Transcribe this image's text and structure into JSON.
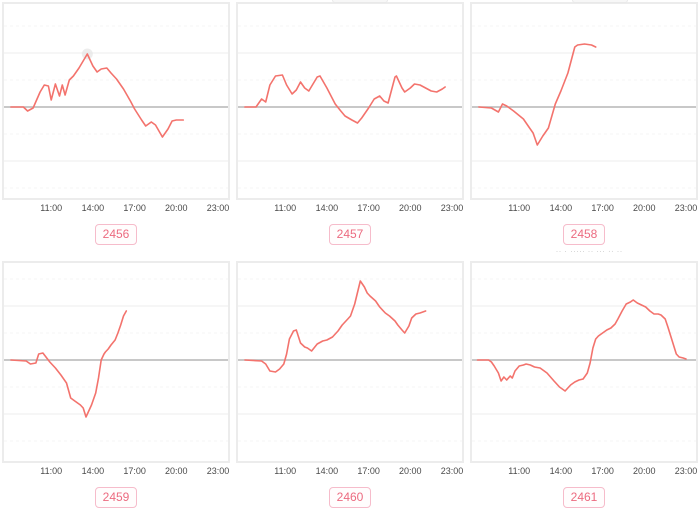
{
  "page": {
    "background": "#ffffff"
  },
  "colors": {
    "line": "#f3736d",
    "zero_line": "#b5b5b5",
    "grid_major": "#ececec",
    "grid_minor": "#f4f4f4",
    "card_border": "#ececec",
    "tick_text": "#4a4a4a",
    "badge_border": "#f6bccb",
    "badge_text": "#ec6b80",
    "marker_fill": "#e6e6e6"
  },
  "x_ticks": {
    "labels": [
      "11:00",
      "14:00",
      "17:00",
      "20:00",
      "23:00"
    ]
  },
  "fine_print": "·· · ····· ·· ··· ·· ··",
  "chart_data": [
    {
      "type": "line",
      "badge": "2456",
      "x_range": [
        "08:00",
        "24:00"
      ],
      "y_axis": "relative (no labels shown), zero baseline drawn",
      "marker": {
        "t": 13.6,
        "v": 53
      },
      "series": [
        [
          8.1,
          0
        ],
        [
          9.0,
          0
        ],
        [
          9.3,
          -4
        ],
        [
          9.7,
          -1
        ],
        [
          10.2,
          15
        ],
        [
          10.5,
          22
        ],
        [
          10.8,
          21
        ],
        [
          11.0,
          7
        ],
        [
          11.3,
          23
        ],
        [
          11.6,
          11
        ],
        [
          11.8,
          22
        ],
        [
          12.0,
          12
        ],
        [
          12.3,
          27
        ],
        [
          12.6,
          31
        ],
        [
          13.0,
          39
        ],
        [
          13.6,
          53
        ],
        [
          14.0,
          41
        ],
        [
          14.3,
          35
        ],
        [
          14.6,
          38
        ],
        [
          15.0,
          39
        ],
        [
          15.3,
          34
        ],
        [
          15.7,
          28
        ],
        [
          16.2,
          18
        ],
        [
          16.7,
          6
        ],
        [
          17.0,
          -2
        ],
        [
          17.5,
          -13
        ],
        [
          17.8,
          -19
        ],
        [
          18.2,
          -15
        ],
        [
          18.5,
          -18
        ],
        [
          19.0,
          -30
        ],
        [
          19.4,
          -22
        ],
        [
          19.7,
          -14
        ],
        [
          20.0,
          -13
        ],
        [
          20.5,
          -13
        ]
      ]
    },
    {
      "type": "line",
      "badge": "2457",
      "x_range": [
        "08:00",
        "24:00"
      ],
      "series": [
        [
          8.1,
          0
        ],
        [
          8.9,
          0
        ],
        [
          9.3,
          8
        ],
        [
          9.6,
          5
        ],
        [
          9.9,
          22
        ],
        [
          10.3,
          31
        ],
        [
          10.8,
          32
        ],
        [
          11.1,
          22
        ],
        [
          11.5,
          13
        ],
        [
          11.8,
          17
        ],
        [
          12.1,
          25
        ],
        [
          12.4,
          19
        ],
        [
          12.7,
          16
        ],
        [
          13.3,
          30
        ],
        [
          13.5,
          31
        ],
        [
          14.0,
          19
        ],
        [
          14.6,
          3
        ],
        [
          15.0,
          -4
        ],
        [
          15.3,
          -9
        ],
        [
          15.8,
          -13
        ],
        [
          16.2,
          -16
        ],
        [
          16.5,
          -11
        ],
        [
          17.0,
          -1
        ],
        [
          17.4,
          8
        ],
        [
          17.8,
          11
        ],
        [
          18.1,
          6
        ],
        [
          18.4,
          4
        ],
        [
          18.9,
          30
        ],
        [
          19.0,
          31
        ],
        [
          19.4,
          19
        ],
        [
          19.6,
          15
        ],
        [
          20.0,
          19
        ],
        [
          20.3,
          23
        ],
        [
          20.7,
          22
        ],
        [
          21.1,
          19
        ],
        [
          21.5,
          16
        ],
        [
          21.9,
          15
        ],
        [
          22.3,
          18
        ],
        [
          22.5,
          20
        ]
      ]
    },
    {
      "type": "line",
      "badge": "2458",
      "x_range": [
        "08:00",
        "24:00"
      ],
      "series": [
        [
          8.1,
          0
        ],
        [
          9.0,
          -1
        ],
        [
          9.5,
          -5
        ],
        [
          9.8,
          3
        ],
        [
          10.1,
          1
        ],
        [
          10.6,
          -4
        ],
        [
          11.3,
          -12
        ],
        [
          11.7,
          -20
        ],
        [
          12.0,
          -26
        ],
        [
          12.3,
          -38
        ],
        [
          12.7,
          -29
        ],
        [
          13.1,
          -21
        ],
        [
          13.6,
          3
        ],
        [
          14.0,
          16
        ],
        [
          14.5,
          34
        ],
        [
          15.0,
          60
        ],
        [
          15.2,
          62
        ],
        [
          15.7,
          63
        ],
        [
          16.2,
          62
        ],
        [
          16.5,
          60
        ]
      ]
    },
    {
      "type": "line",
      "badge": "2459",
      "x_range": [
        "08:00",
        "24:00"
      ],
      "series": [
        [
          8.1,
          0
        ],
        [
          9.2,
          -1
        ],
        [
          9.5,
          -4
        ],
        [
          9.9,
          -3
        ],
        [
          10.1,
          6
        ],
        [
          10.4,
          7
        ],
        [
          10.9,
          -2
        ],
        [
          11.3,
          -8
        ],
        [
          11.7,
          -15
        ],
        [
          12.1,
          -23
        ],
        [
          12.4,
          -38
        ],
        [
          12.7,
          -41
        ],
        [
          13.1,
          -45
        ],
        [
          13.3,
          -48
        ],
        [
          13.5,
          -57
        ],
        [
          13.9,
          -45
        ],
        [
          14.2,
          -33
        ],
        [
          14.4,
          -18
        ],
        [
          14.6,
          0
        ],
        [
          14.8,
          6
        ],
        [
          14.9,
          8
        ],
        [
          15.1,
          11
        ],
        [
          15.3,
          15
        ],
        [
          15.6,
          20
        ],
        [
          15.8,
          27
        ],
        [
          16.0,
          35
        ],
        [
          16.2,
          44
        ],
        [
          16.4,
          49
        ]
      ]
    },
    {
      "type": "line",
      "badge": "2460",
      "x_range": [
        "08:00",
        "24:00"
      ],
      "series": [
        [
          8.1,
          0
        ],
        [
          9.3,
          -1
        ],
        [
          9.6,
          -4
        ],
        [
          9.9,
          -11
        ],
        [
          10.3,
          -12
        ],
        [
          10.6,
          -9
        ],
        [
          10.9,
          -4
        ],
        [
          11.1,
          6
        ],
        [
          11.3,
          21
        ],
        [
          11.6,
          29
        ],
        [
          11.8,
          30
        ],
        [
          12.1,
          17
        ],
        [
          12.4,
          13
        ],
        [
          12.6,
          12
        ],
        [
          12.9,
          9
        ],
        [
          13.3,
          16
        ],
        [
          13.7,
          19
        ],
        [
          14.0,
          20
        ],
        [
          14.4,
          23
        ],
        [
          14.8,
          29
        ],
        [
          15.1,
          35
        ],
        [
          15.5,
          41
        ],
        [
          15.7,
          44
        ],
        [
          16.0,
          56
        ],
        [
          16.4,
          79
        ],
        [
          16.7,
          73
        ],
        [
          16.9,
          67
        ],
        [
          17.1,
          64
        ],
        [
          17.5,
          59
        ],
        [
          17.8,
          53
        ],
        [
          18.2,
          47
        ],
        [
          18.5,
          44
        ],
        [
          18.9,
          39
        ],
        [
          19.1,
          35
        ],
        [
          19.4,
          30
        ],
        [
          19.6,
          27
        ],
        [
          19.9,
          34
        ],
        [
          20.1,
          42
        ],
        [
          20.4,
          46
        ],
        [
          20.7,
          47
        ],
        [
          20.9,
          48
        ],
        [
          21.1,
          49
        ]
      ]
    },
    {
      "type": "line",
      "badge": "2461",
      "x_range": [
        "08:00",
        "24:00"
      ],
      "series": [
        [
          8.0,
          0
        ],
        [
          8.8,
          0
        ],
        [
          9.0,
          -2
        ],
        [
          9.2,
          -6
        ],
        [
          9.5,
          -13
        ],
        [
          9.7,
          -21
        ],
        [
          9.9,
          -17
        ],
        [
          10.1,
          -20
        ],
        [
          10.35,
          -16
        ],
        [
          10.5,
          -18
        ],
        [
          10.7,
          -11
        ],
        [
          11.0,
          -6
        ],
        [
          11.3,
          -5
        ],
        [
          11.5,
          -4
        ],
        [
          11.8,
          -5
        ],
        [
          12.1,
          -7
        ],
        [
          12.5,
          -8
        ],
        [
          13.0,
          -13
        ],
        [
          13.5,
          -21
        ],
        [
          13.9,
          -27
        ],
        [
          14.3,
          -31
        ],
        [
          14.7,
          -25
        ],
        [
          15.0,
          -22
        ],
        [
          15.3,
          -20
        ],
        [
          15.6,
          -19
        ],
        [
          15.9,
          -13
        ],
        [
          16.1,
          -3
        ],
        [
          16.3,
          12
        ],
        [
          16.5,
          21
        ],
        [
          16.7,
          24
        ],
        [
          17.0,
          27
        ],
        [
          17.3,
          30
        ],
        [
          17.6,
          32
        ],
        [
          17.9,
          36
        ],
        [
          18.1,
          41
        ],
        [
          18.4,
          49
        ],
        [
          18.7,
          56
        ],
        [
          19.0,
          58
        ],
        [
          19.2,
          60
        ],
        [
          19.5,
          57
        ],
        [
          19.8,
          55
        ],
        [
          20.1,
          53
        ],
        [
          20.4,
          49
        ],
        [
          20.7,
          46
        ],
        [
          21.0,
          46
        ],
        [
          21.2,
          45
        ],
        [
          21.5,
          41
        ],
        [
          21.7,
          33
        ],
        [
          21.9,
          24
        ],
        [
          22.1,
          15
        ],
        [
          22.3,
          6
        ],
        [
          22.5,
          3
        ],
        [
          22.8,
          2
        ],
        [
          23.0,
          1
        ]
      ]
    }
  ]
}
